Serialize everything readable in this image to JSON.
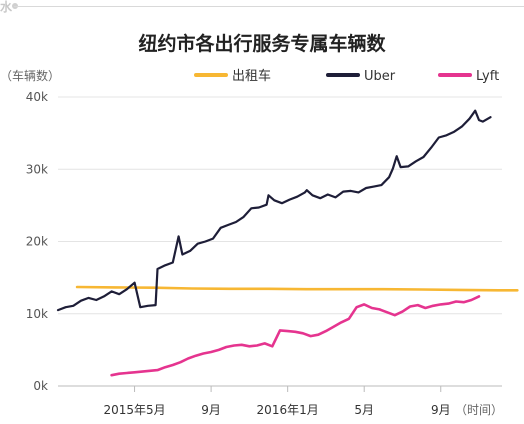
{
  "chart_data": {
    "type": "line",
    "title": "纽约市各出行服务专属车辆数",
    "ylabel": "（车辆数）",
    "xlabel": "（时间）",
    "ylim": [
      0,
      40000
    ],
    "yticks": [
      0,
      10000,
      20000,
      30000,
      40000
    ],
    "ytick_labels": [
      "0k",
      "10k",
      "20k",
      "30k",
      "40k"
    ],
    "grid": true,
    "legend": "top",
    "xlim": [
      0,
      29
    ],
    "x_note": "months since Jan 2015",
    "xticks": [
      {
        "x": 4,
        "label": "2015年5月"
      },
      {
        "x": 8,
        "label": "9月"
      },
      {
        "x": 12,
        "label": "2016年1月"
      },
      {
        "x": 16,
        "label": "5月"
      },
      {
        "x": 20,
        "label": "9月"
      }
    ],
    "series": [
      {
        "name": "出租车",
        "color": "#f7b733",
        "points": [
          [
            1,
            13700
          ],
          [
            3,
            13650
          ],
          [
            5,
            13600
          ],
          [
            7,
            13500
          ],
          [
            9,
            13450
          ],
          [
            11,
            13450
          ],
          [
            13,
            13400
          ],
          [
            15,
            13400
          ],
          [
            17,
            13400
          ],
          [
            19,
            13350
          ],
          [
            21,
            13300
          ],
          [
            23,
            13250
          ],
          [
            24,
            13250
          ]
        ]
      },
      {
        "name": "Uber",
        "color": "#1e1e38",
        "points": [
          [
            0,
            10500
          ],
          [
            0.4,
            10900
          ],
          [
            0.8,
            11100
          ],
          [
            1.2,
            11800
          ],
          [
            1.6,
            12200
          ],
          [
            2,
            11900
          ],
          [
            2.4,
            12400
          ],
          [
            2.8,
            13100
          ],
          [
            3.2,
            12700
          ],
          [
            3.6,
            13400
          ],
          [
            4,
            14300
          ],
          [
            4.3,
            10900
          ],
          [
            4.7,
            11100
          ],
          [
            5.1,
            11200
          ],
          [
            5.2,
            16200
          ],
          [
            5.6,
            16700
          ],
          [
            6,
            17100
          ],
          [
            6.3,
            20700
          ],
          [
            6.5,
            18200
          ],
          [
            6.9,
            18700
          ],
          [
            7.3,
            19700
          ],
          [
            7.7,
            20000
          ],
          [
            8.1,
            20400
          ],
          [
            8.5,
            21900
          ],
          [
            8.9,
            22300
          ],
          [
            9.3,
            22700
          ],
          [
            9.7,
            23400
          ],
          [
            10.1,
            24600
          ],
          [
            10.5,
            24700
          ],
          [
            10.9,
            25100
          ],
          [
            11,
            26400
          ],
          [
            11.3,
            25700
          ],
          [
            11.7,
            25300
          ],
          [
            12.1,
            25800
          ],
          [
            12.5,
            26200
          ],
          [
            12.9,
            26800
          ],
          [
            13,
            27100
          ],
          [
            13.3,
            26400
          ],
          [
            13.7,
            26000
          ],
          [
            14.1,
            26500
          ],
          [
            14.5,
            26100
          ],
          [
            14.9,
            26900
          ],
          [
            15.3,
            27000
          ],
          [
            15.7,
            26800
          ],
          [
            16.1,
            27400
          ],
          [
            16.5,
            27600
          ],
          [
            16.9,
            27800
          ],
          [
            17.3,
            28900
          ],
          [
            17.5,
            30100
          ],
          [
            17.7,
            31800
          ],
          [
            17.9,
            30300
          ],
          [
            18.3,
            30400
          ],
          [
            18.7,
            31100
          ],
          [
            19.1,
            31700
          ],
          [
            19.5,
            33000
          ],
          [
            19.9,
            34400
          ],
          [
            20.3,
            34700
          ],
          [
            20.7,
            35200
          ],
          [
            21.1,
            35900
          ],
          [
            21.5,
            37000
          ],
          [
            21.8,
            38100
          ],
          [
            22,
            36800
          ],
          [
            22.2,
            36600
          ],
          [
            22.6,
            37200
          ]
        ]
      },
      {
        "name": "Lyft",
        "color": "#e5348f",
        "points": [
          [
            2.8,
            1500
          ],
          [
            3.2,
            1700
          ],
          [
            3.6,
            1800
          ],
          [
            4,
            1900
          ],
          [
            4.4,
            2000
          ],
          [
            4.8,
            2100
          ],
          [
            5.2,
            2200
          ],
          [
            5.6,
            2600
          ],
          [
            6,
            2900
          ],
          [
            6.4,
            3300
          ],
          [
            6.8,
            3800
          ],
          [
            7.2,
            4200
          ],
          [
            7.6,
            4500
          ],
          [
            8,
            4700
          ],
          [
            8.4,
            5000
          ],
          [
            8.8,
            5400
          ],
          [
            9.2,
            5600
          ],
          [
            9.6,
            5700
          ],
          [
            10,
            5500
          ],
          [
            10.4,
            5600
          ],
          [
            10.8,
            5900
          ],
          [
            11.2,
            5500
          ],
          [
            11.6,
            7700
          ],
          [
            12,
            7600
          ],
          [
            12.4,
            7500
          ],
          [
            12.8,
            7300
          ],
          [
            13.2,
            6900
          ],
          [
            13.6,
            7100
          ],
          [
            14,
            7600
          ],
          [
            14.4,
            8200
          ],
          [
            14.8,
            8800
          ],
          [
            15.2,
            9300
          ],
          [
            15.6,
            10900
          ],
          [
            16,
            11300
          ],
          [
            16.4,
            10800
          ],
          [
            16.8,
            10600
          ],
          [
            17.2,
            10200
          ],
          [
            17.6,
            9800
          ],
          [
            18,
            10300
          ],
          [
            18.4,
            11000
          ],
          [
            18.8,
            11200
          ],
          [
            19.2,
            10800
          ],
          [
            19.6,
            11100
          ],
          [
            20,
            11300
          ],
          [
            20.4,
            11400
          ],
          [
            20.8,
            11700
          ],
          [
            21.2,
            11600
          ],
          [
            21.6,
            11900
          ],
          [
            22,
            12400
          ]
        ]
      }
    ]
  }
}
